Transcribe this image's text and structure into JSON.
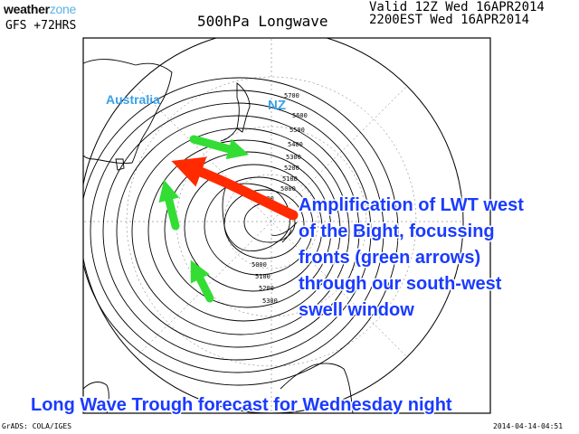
{
  "header": {
    "logo_main": "weather",
    "logo_zone": "zone",
    "model": "GFS +72HRS",
    "title": "500hPa Longwave",
    "valid_line1": "Valid 12Z Wed 16APR2014",
    "valid_line2": "2200EST Wed 16APR2014"
  },
  "labels": {
    "australia": "Australia",
    "nz": "NZ"
  },
  "annotation": {
    "lines": [
      "Amplification of LWT west",
      "of the Bight, focussing",
      "fronts (green arrows)",
      "through our south-west",
      "swell window"
    ]
  },
  "caption": "Long Wave Trough forecast for Wednesday night",
  "contour_labels": [
    "5700",
    "5600",
    "5500",
    "5400",
    "5300",
    "5200",
    "5100",
    "5000",
    "4900",
    "5000",
    "5100",
    "5200",
    "5300"
  ],
  "footer": {
    "left": "GrADS: COLA/IGES",
    "right": "2014-04-14-04:51"
  },
  "colors": {
    "annotation_text": "#1a3bff",
    "country_labels": "#3aa0e8",
    "red_arrow": "#ff2a00",
    "green_arrows": "#33dd33"
  }
}
